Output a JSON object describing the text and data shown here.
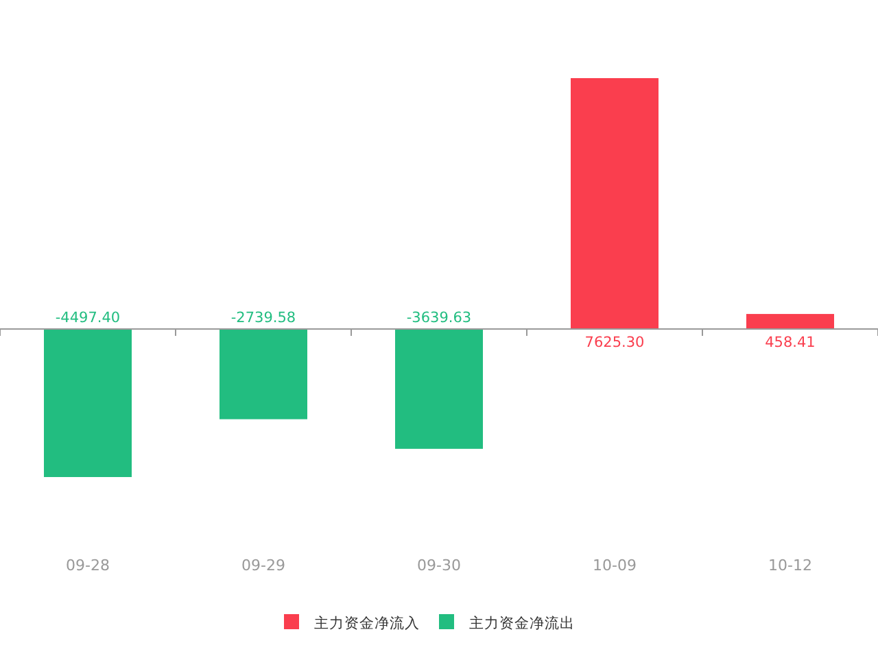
{
  "chart_data": {
    "type": "bar",
    "categories": [
      "09-28",
      "09-29",
      "09-30",
      "10-09",
      "10-12"
    ],
    "legend": "bottom",
    "series": [
      {
        "name": "主力资金净流入",
        "color": "#fa3e4e",
        "values": [
          null,
          null,
          null,
          7625.3,
          458.41
        ],
        "value_labels": [
          null,
          null,
          null,
          "7625.30",
          "458.41"
        ]
      },
      {
        "name": "主力资金净流出",
        "color": "#22bd80",
        "values": [
          -4497.4,
          -2739.58,
          -3639.63,
          null,
          null
        ],
        "value_labels": [
          "-4497.40",
          "-2739.58",
          "-3639.63",
          null,
          null
        ]
      }
    ]
  }
}
